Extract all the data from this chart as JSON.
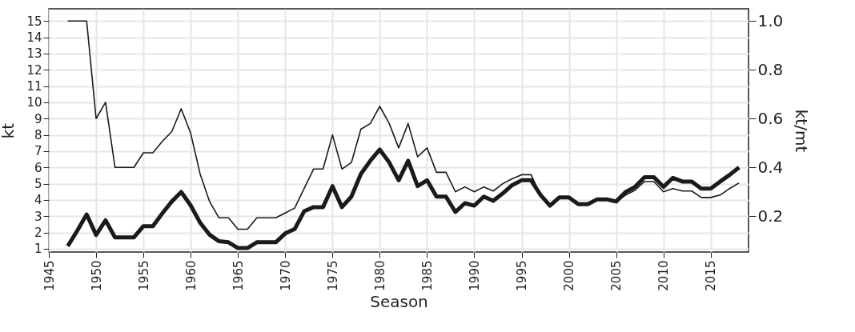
{
  "chart_data": {
    "type": "line",
    "xlabel": "Season",
    "ylabel": "kt",
    "y2label": "kt/mt",
    "x": [
      1947,
      1948,
      1949,
      1950,
      1951,
      1952,
      1953,
      1954,
      1955,
      1956,
      1957,
      1958,
      1959,
      1960,
      1961,
      1962,
      1963,
      1964,
      1965,
      1966,
      1967,
      1968,
      1969,
      1970,
      1971,
      1972,
      1973,
      1974,
      1975,
      1976,
      1977,
      1978,
      1979,
      1980,
      1981,
      1982,
      1983,
      1984,
      1985,
      1986,
      1987,
      1988,
      1989,
      1990,
      1991,
      1992,
      1993,
      1994,
      1995,
      1996,
      1997,
      1998,
      1999,
      2000,
      2001,
      2002,
      2003,
      2004,
      2005,
      2006,
      2007,
      2008,
      2009,
      2010,
      2011,
      2012,
      2013,
      2014,
      2015,
      2016,
      2017,
      2018
    ],
    "series": [
      {
        "color": "#1a1a1a",
        "values": [
          15,
          15,
          15,
          9,
          10,
          6,
          6,
          6,
          6.9,
          6.9,
          7.6,
          8.2,
          9.6,
          8.1,
          5.6,
          3.9,
          2.9,
          2.9,
          2.2,
          2.2,
          2.9,
          2.9,
          2.9,
          3.2,
          3.5,
          4.7,
          5.9,
          5.9,
          8.0,
          5.9,
          6.3,
          8.35,
          8.7,
          9.75,
          8.7,
          7.2,
          8.7,
          6.65,
          7.2,
          5.7,
          5.7,
          4.5,
          4.8,
          4.5,
          4.8,
          4.55,
          5.0,
          5.3,
          5.55,
          5.55,
          4.3,
          3.65,
          4.15,
          4.15,
          3.74,
          3.74,
          4.03,
          4.03,
          3.87,
          4.3,
          4.6,
          5.13,
          5.13,
          4.5,
          4.7,
          4.55,
          4.55,
          4.15,
          4.15,
          4.3,
          4.7,
          5.05
        ]
      },
      {
        "color": "#1a1a1a",
        "axis": "y2",
        "values": [
          0.077,
          0.14,
          0.207,
          0.123,
          0.183,
          0.113,
          0.113,
          0.113,
          0.159,
          0.159,
          0.211,
          0.26,
          0.299,
          0.244,
          0.173,
          0.124,
          0.097,
          0.093,
          0.069,
          0.069,
          0.093,
          0.093,
          0.093,
          0.129,
          0.147,
          0.22,
          0.237,
          0.237,
          0.323,
          0.237,
          0.28,
          0.373,
          0.427,
          0.473,
          0.42,
          0.347,
          0.427,
          0.323,
          0.347,
          0.28,
          0.28,
          0.217,
          0.253,
          0.243,
          0.28,
          0.263,
          0.293,
          0.327,
          0.347,
          0.347,
          0.287,
          0.243,
          0.277,
          0.277,
          0.249,
          0.249,
          0.269,
          0.269,
          0.26,
          0.299,
          0.32,
          0.36,
          0.36,
          0.32,
          0.357,
          0.342,
          0.342,
          0.313,
          0.313,
          0.342,
          0.369,
          0.4
        ]
      }
    ],
    "xlim": [
      1945,
      2019
    ],
    "xticks": [
      1945,
      1950,
      1955,
      1960,
      1965,
      1970,
      1975,
      1980,
      1985,
      1990,
      1995,
      2000,
      2005,
      2010,
      2015
    ],
    "ylim": [
      0.8,
      15.75
    ],
    "yticks": [
      1,
      2,
      3,
      4,
      5,
      6,
      7,
      8,
      9,
      10,
      11,
      12,
      13,
      14,
      15
    ],
    "y2lim": [
      0.053,
      1.05
    ],
    "y2ticks": [
      0.2,
      0.4,
      0.6,
      0.8,
      {
        "value": 1,
        "label": "1.0"
      }
    ],
    "grid": true,
    "marker": "none",
    "line_style": "solid"
  }
}
